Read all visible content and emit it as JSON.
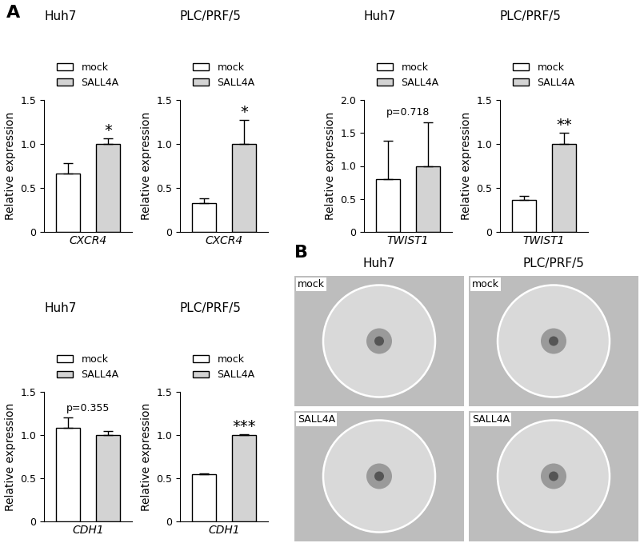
{
  "panel_labels": [
    "A",
    "B"
  ],
  "chart_data": [
    {
      "type": "bar",
      "title": "Huh7",
      "x_label": "CXCR4",
      "y_label": "Relative expression",
      "legend": "lower center",
      "tick_labels": "y",
      "ylim": [
        0,
        1.5
      ],
      "yticks": [
        0,
        0.5,
        {
          "value": 1,
          "label": "1.0"
        },
        1.5
      ],
      "series": [
        {
          "name": "mock",
          "color": "#ffffff",
          "values": [
            0.66
          ],
          "error": [
            0.12
          ]
        },
        {
          "name": "SALL4A",
          "color": "#d3d3d3",
          "values": [
            1.0
          ],
          "error": [
            0.06
          ]
        }
      ],
      "annotation": "*"
    },
    {
      "type": "bar",
      "title": "PLC/PRF/5",
      "x_label": "CXCR4",
      "y_label": "Relative expression",
      "legend": "lower center",
      "tick_labels": "y",
      "ylim": [
        0,
        1.5
      ],
      "yticks": [
        0,
        0.5,
        {
          "value": 1,
          "label": "1.0"
        },
        1.5
      ],
      "series": [
        {
          "name": "mock",
          "color": "#ffffff",
          "values": [
            0.33
          ],
          "error": [
            0.05
          ]
        },
        {
          "name": "SALL4A",
          "color": "#d3d3d3",
          "values": [
            1.0
          ],
          "error": [
            0.27
          ]
        }
      ],
      "annotation": "*"
    },
    {
      "type": "bar",
      "title": "Huh7",
      "x_label": "TWIST1",
      "y_label": "Relative expression",
      "legend": "lower center",
      "tick_labels": "y",
      "ylim": [
        0,
        2
      ],
      "yticks": [
        0,
        0.5,
        {
          "value": 1,
          "label": "1.0"
        },
        1.5,
        {
          "value": 2,
          "label": "2.0"
        }
      ],
      "series": [
        {
          "name": "mock",
          "color": "#ffffff",
          "values": [
            0.8
          ],
          "error": [
            0.58
          ]
        },
        {
          "name": "SALL4A",
          "color": "#d3d3d3",
          "values": [
            1.0
          ],
          "error": [
            0.66
          ]
        }
      ],
      "annotation": "p=0.718"
    },
    {
      "type": "bar",
      "title": "PLC/PRF/5",
      "x_label": "TWIST1",
      "y_label": "Relative expression",
      "legend": "lower center",
      "tick_labels": "y",
      "ylim": [
        0,
        1.5
      ],
      "yticks": [
        0,
        0.5,
        {
          "value": 1,
          "label": "1.0"
        },
        1.5
      ],
      "series": [
        {
          "name": "mock",
          "color": "#ffffff",
          "values": [
            0.36
          ],
          "error": [
            0.05
          ]
        },
        {
          "name": "SALL4A",
          "color": "#d3d3d3",
          "values": [
            1.0
          ],
          "error": [
            0.13
          ]
        }
      ],
      "annotation": "**"
    },
    {
      "type": "bar",
      "title": "Huh7",
      "x_label": "CDH1",
      "y_label": "Relative expression",
      "legend": "lower center",
      "tick_labels": "y",
      "ylim": [
        0,
        1.5
      ],
      "yticks": [
        0,
        0.5,
        {
          "value": 1,
          "label": "1.0"
        },
        1.5
      ],
      "series": [
        {
          "name": "mock",
          "color": "#ffffff",
          "values": [
            1.08
          ],
          "error": [
            0.12
          ]
        },
        {
          "name": "SALL4A",
          "color": "#d3d3d3",
          "values": [
            1.0
          ],
          "error": [
            0.05
          ]
        }
      ],
      "annotation": "p=0.355"
    },
    {
      "type": "bar",
      "title": "PLC/PRF/5",
      "x_label": "CDH1",
      "y_label": "Relative expression",
      "legend": "lower center",
      "tick_labels": "y",
      "ylim": [
        0,
        1.5
      ],
      "yticks": [
        0,
        0.5,
        {
          "value": 1,
          "label": "1.0"
        },
        1.5
      ],
      "series": [
        {
          "name": "mock",
          "color": "#ffffff",
          "values": [
            0.55
          ],
          "error": [
            0.01
          ]
        },
        {
          "name": "SALL4A",
          "color": "#d3d3d3",
          "values": [
            1.0
          ],
          "error": [
            0.01
          ]
        }
      ],
      "annotation": "***"
    }
  ],
  "images": {
    "columns": [
      "Huh7",
      "PLC/PRF/5"
    ],
    "rows": [
      "mock",
      "SALL4A"
    ]
  }
}
